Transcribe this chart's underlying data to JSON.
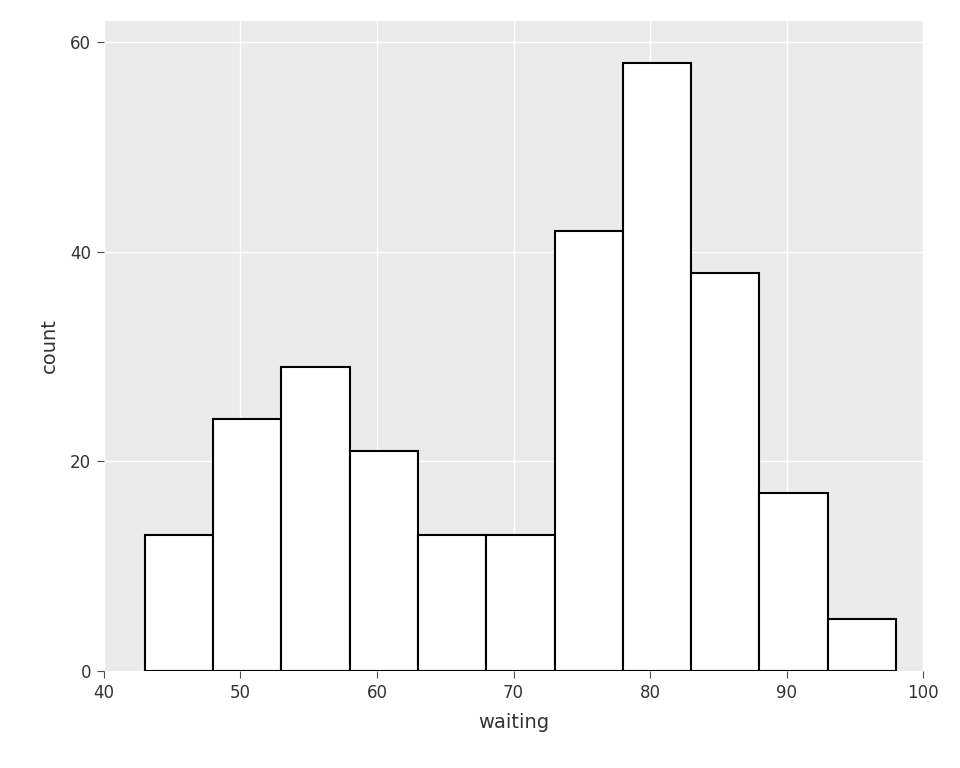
{
  "title": "",
  "xlabel": "waiting",
  "ylabel": "count",
  "xlim": [
    40,
    100
  ],
  "ylim": [
    0,
    62
  ],
  "xticks": [
    40,
    50,
    60,
    70,
    80,
    90,
    100
  ],
  "yticks": [
    0,
    20,
    40,
    60
  ],
  "bin_edges": [
    43,
    48,
    53,
    58,
    63,
    68,
    73,
    78,
    83,
    88,
    93,
    98
  ],
  "bin_counts": [
    13,
    24,
    29,
    21,
    13,
    13,
    42,
    58,
    38,
    17,
    5
  ],
  "bar_facecolor": "#ffffff",
  "bar_edgecolor": "#000000",
  "plot_background_color": "#ebebeb",
  "figure_background_color": "#ffffff",
  "grid_color": "#ffffff",
  "tick_color": "#4d4d4d",
  "axis_label_fontsize": 14,
  "tick_fontsize": 12,
  "bar_linewidth": 1.5
}
